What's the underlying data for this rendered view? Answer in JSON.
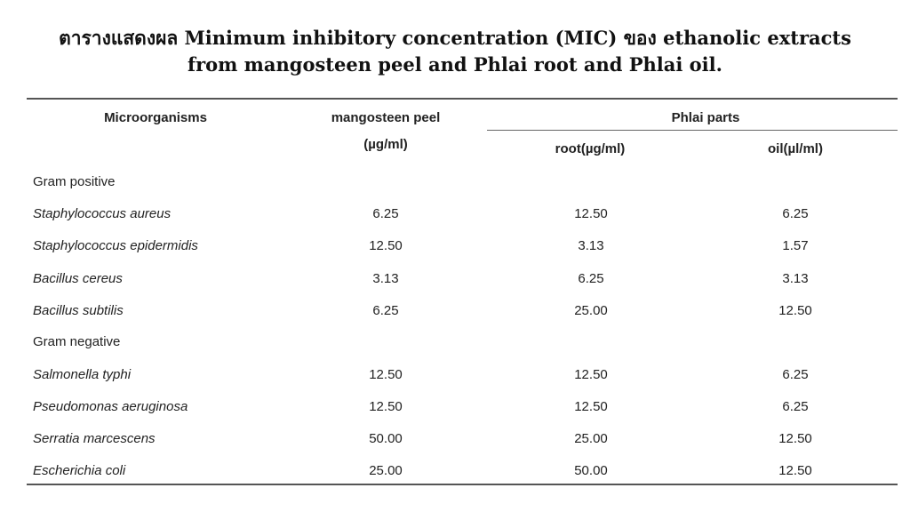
{
  "title": {
    "line1": "ตารางแสดงผล Minimum inhibitory concentration (MIC) ของ ethanolic extracts",
    "line2": "from mangosteen peel and Phlai root and Phlai oil."
  },
  "table": {
    "headers": {
      "microorganisms": "Microorganisms",
      "mangosteen": "mangosteen peel",
      "mangosteen_unit": "(µg/ml)",
      "phlai_parts": "Phlai parts",
      "root": "root(µg/ml)",
      "oil": "oil(µl/ml)"
    },
    "rows": [
      {
        "name": "Gram positive"
      },
      {
        "name": "Staphylococcus aureus",
        "mangosteen": "6.25",
        "root": "12.50",
        "oil": "6.25"
      },
      {
        "name": "Staphylococcus epidermidis",
        "mangosteen": "12.50",
        "root": "3.13",
        "oil": "1.57"
      },
      {
        "name": "Bacillus cereus",
        "mangosteen": "3.13",
        "root": "6.25",
        "oil": "3.13"
      },
      {
        "name": "Bacillus subtilis",
        "mangosteen": "6.25",
        "root": "25.00",
        "oil": "12.50"
      },
      {
        "name": "Gram negative"
      },
      {
        "name": "Salmonella typhi",
        "mangosteen": "12.50",
        "root": "12.50",
        "oil": "6.25"
      },
      {
        "name": "Pseudomonas aeruginosa",
        "mangosteen": "12.50",
        "root": "12.50",
        "oil": "6.25"
      },
      {
        "name": "Serratia marcescens",
        "mangosteen": "50.00",
        "root": "25.00",
        "oil": "12.50"
      },
      {
        "name": "Escherichia coli",
        "mangosteen": "25.00",
        "root": "50.00",
        "oil": "12.50"
      }
    ]
  }
}
